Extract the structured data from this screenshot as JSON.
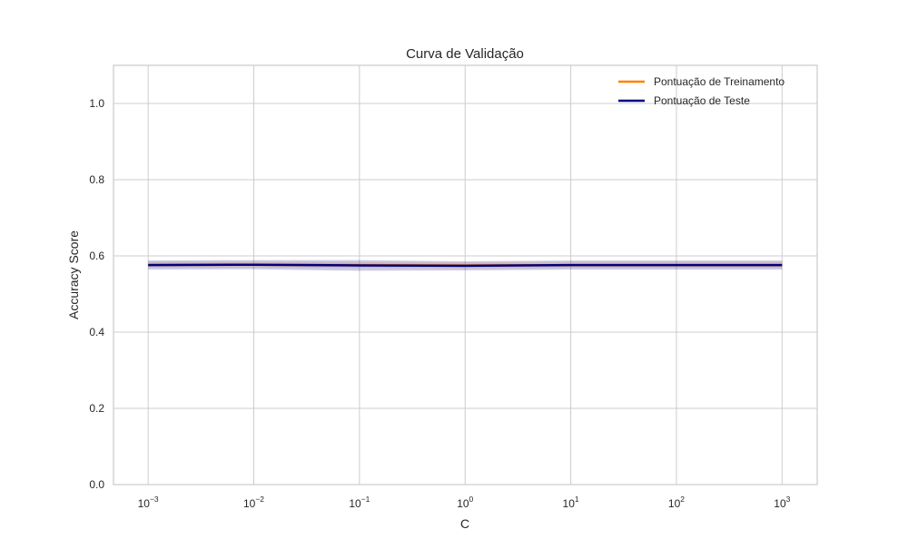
{
  "chart_data": {
    "type": "line",
    "title": "Curva de Validação",
    "xlabel": "C",
    "ylabel": "Accuracy Score",
    "xscale": "log",
    "x": [
      0.001,
      0.01,
      0.1,
      1,
      10,
      100,
      1000
    ],
    "xlim": [
      0.00047,
      2150
    ],
    "ylim": [
      0.0,
      1.1
    ],
    "xticks": [
      {
        "value": 0.001,
        "base": "10",
        "exp": "−3"
      },
      {
        "value": 0.01,
        "base": "10",
        "exp": "−2"
      },
      {
        "value": 0.1,
        "base": "10",
        "exp": "−1"
      },
      {
        "value": 1,
        "base": "10",
        "exp": "0"
      },
      {
        "value": 10,
        "base": "10",
        "exp": "1"
      },
      {
        "value": 100,
        "base": "10",
        "exp": "2"
      },
      {
        "value": 1000,
        "base": "10",
        "exp": "3"
      }
    ],
    "yticks": [
      {
        "value": 0.0,
        "label": "0.0"
      },
      {
        "value": 0.2,
        "label": "0.2"
      },
      {
        "value": 0.4,
        "label": "0.4"
      },
      {
        "value": 0.6,
        "label": "0.6"
      },
      {
        "value": 0.8,
        "label": "0.8"
      },
      {
        "value": 1.0,
        "label": "1.0"
      }
    ],
    "grid": true,
    "legend_position": "top-right",
    "series": [
      {
        "name": "Pontuação de Treinamento",
        "color": "#ff8000",
        "values": [
          0.577,
          0.577,
          0.576,
          0.575,
          0.576,
          0.576,
          0.576
        ],
        "band": [
          0.008,
          0.008,
          0.008,
          0.008,
          0.008,
          0.008,
          0.008
        ],
        "band_color": "#ff8000"
      },
      {
        "name": "Pontuação de Teste",
        "color": "#000080",
        "values": [
          0.576,
          0.577,
          0.575,
          0.574,
          0.576,
          0.576,
          0.576
        ],
        "band": [
          0.012,
          0.012,
          0.014,
          0.012,
          0.012,
          0.012,
          0.012
        ],
        "band_color": "#000080"
      }
    ]
  }
}
